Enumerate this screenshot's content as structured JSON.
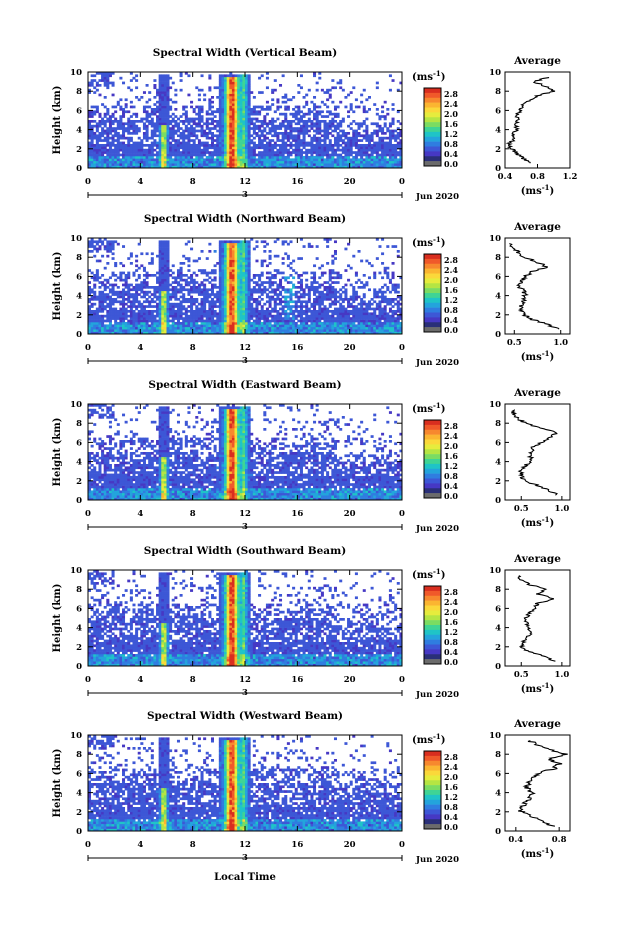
{
  "figure": {
    "xlabel": "Local Time",
    "date_label": "Jun 2020",
    "date_marker": "3",
    "unit_label": "(ms",
    "unit_exp": "-1",
    "ylabel": "Height (km)",
    "avg_title": "Average"
  },
  "colorbar_ticks": [
    "2.8",
    "2.4",
    "2.0",
    "1.6",
    "1.2",
    "0.8",
    "0.4",
    "0.0"
  ],
  "colorbar_colors": [
    "#d92e1f",
    "#f0592a",
    "#f7882e",
    "#fbb531",
    "#fbd83a",
    "#e6ec3d",
    "#b5e543",
    "#7bdc62",
    "#3fd495",
    "#1fc4c7",
    "#23a4dc",
    "#2f7de0",
    "#3d57d6",
    "#4638c4",
    "#2a2f78",
    "#6b6b6b"
  ],
  "chart_data": [
    {
      "type": "heatmap",
      "title": "Spectral Width (Vertical Beam)",
      "xlabel": "Local Time",
      "ylabel": "Height (km)",
      "x_ticks": [
        "0",
        "4",
        "8",
        "12",
        "16",
        "20",
        "0"
      ],
      "y_ticks": [
        "0",
        "2",
        "4",
        "6",
        "8",
        "10"
      ],
      "xlim": [
        0,
        24
      ],
      "ylim": [
        0,
        10
      ],
      "colorbar": {
        "label": "(ms-1)",
        "range": [
          0.0,
          3.0
        ]
      },
      "average_profile": {
        "title": "Average",
        "xlabel": "(ms-1)",
        "x_ticks": [
          "0.4",
          "0.8",
          "1.2"
        ],
        "xlim": [
          0.4,
          1.2
        ],
        "height": [
          0.5,
          1,
          1.5,
          2,
          2.5,
          3,
          3.5,
          4,
          4.5,
          5,
          5.5,
          6,
          6.5,
          7,
          7.5,
          8,
          8.5,
          9,
          9.5
        ],
        "values": [
          0.72,
          0.62,
          0.55,
          0.48,
          0.45,
          0.52,
          0.5,
          0.55,
          0.52,
          0.56,
          0.54,
          0.6,
          0.62,
          0.7,
          0.8,
          1.0,
          0.9,
          0.75,
          0.95
        ]
      }
    },
    {
      "type": "heatmap",
      "title": "Spectral Width (Northward Beam)",
      "xlabel": "Local Time",
      "ylabel": "Height (km)",
      "x_ticks": [
        "0",
        "4",
        "8",
        "12",
        "16",
        "20",
        "0"
      ],
      "y_ticks": [
        "0",
        "2",
        "4",
        "6",
        "8",
        "10"
      ],
      "xlim": [
        0,
        24
      ],
      "ylim": [
        0,
        10
      ],
      "colorbar": {
        "label": "(ms-1)",
        "range": [
          0.0,
          3.0
        ]
      },
      "average_profile": {
        "title": "Average",
        "xlabel": "(ms-1)",
        "x_ticks": [
          "0.5",
          "1.0"
        ],
        "xlim": [
          0.4,
          1.1
        ],
        "height": [
          0.5,
          1,
          1.5,
          2,
          2.5,
          3,
          3.5,
          4,
          4.5,
          5,
          5.5,
          6,
          6.5,
          7,
          7.5,
          8,
          8.5,
          9,
          9.5
        ],
        "values": [
          1.0,
          0.85,
          0.7,
          0.6,
          0.58,
          0.58,
          0.6,
          0.62,
          0.6,
          0.55,
          0.58,
          0.62,
          0.7,
          0.85,
          0.75,
          0.6,
          0.55,
          0.5,
          0.45
        ]
      }
    },
    {
      "type": "heatmap",
      "title": "Spectral Width (Eastward Beam)",
      "xlabel": "Local Time",
      "ylabel": "Height (km)",
      "x_ticks": [
        "0",
        "4",
        "8",
        "12",
        "16",
        "20",
        "0"
      ],
      "y_ticks": [
        "0",
        "2",
        "4",
        "6",
        "8",
        "10"
      ],
      "xlim": [
        0,
        24
      ],
      "ylim": [
        0,
        10
      ],
      "colorbar": {
        "label": "(ms-1)",
        "range": [
          0.0,
          3.0
        ]
      },
      "average_profile": {
        "title": "Average",
        "xlabel": "(ms-1)",
        "x_ticks": [
          "0.5",
          "1.0"
        ],
        "xlim": [
          0.3,
          1.1
        ],
        "height": [
          0.5,
          1,
          1.5,
          2,
          2.5,
          3,
          3.5,
          4,
          4.5,
          5,
          5.5,
          6,
          6.5,
          7,
          7.5,
          8,
          8.5,
          9,
          9.5
        ],
        "values": [
          0.95,
          0.85,
          0.7,
          0.55,
          0.5,
          0.5,
          0.55,
          0.6,
          0.62,
          0.62,
          0.65,
          0.75,
          0.85,
          0.95,
          0.75,
          0.55,
          0.45,
          0.4,
          0.4
        ]
      }
    },
    {
      "type": "heatmap",
      "title": "Spectral Width (Southward Beam)",
      "xlabel": "Local Time",
      "ylabel": "Height (km)",
      "x_ticks": [
        "0",
        "4",
        "8",
        "12",
        "16",
        "20",
        "0"
      ],
      "y_ticks": [
        "0",
        "2",
        "4",
        "6",
        "8",
        "10"
      ],
      "xlim": [
        0,
        24
      ],
      "ylim": [
        0,
        10
      ],
      "colorbar": {
        "label": "(ms-1)",
        "range": [
          0.0,
          3.0
        ]
      },
      "average_profile": {
        "title": "Average",
        "xlabel": "(ms-1)",
        "x_ticks": [
          "0.5",
          "1.0"
        ],
        "xlim": [
          0.3,
          1.1
        ],
        "height": [
          0.5,
          1,
          1.5,
          2,
          2.5,
          3,
          3.5,
          4,
          4.5,
          5,
          5.5,
          6,
          6.5,
          7,
          7.5,
          8,
          8.5,
          9,
          9.5
        ],
        "values": [
          0.9,
          0.8,
          0.6,
          0.5,
          0.52,
          0.58,
          0.62,
          0.6,
          0.58,
          0.55,
          0.6,
          0.65,
          0.7,
          0.9,
          0.7,
          0.8,
          0.6,
          0.5,
          0.45
        ]
      }
    },
    {
      "type": "heatmap",
      "title": "Spectral Width (Westward Beam)",
      "xlabel": "Local Time",
      "ylabel": "Height (km)",
      "x_ticks": [
        "0",
        "4",
        "8",
        "12",
        "16",
        "20",
        "0"
      ],
      "y_ticks": [
        "0",
        "2",
        "4",
        "6",
        "8",
        "10"
      ],
      "xlim": [
        0,
        24
      ],
      "ylim": [
        0,
        10
      ],
      "colorbar": {
        "label": "(ms-1)",
        "range": [
          0.0,
          3.0
        ]
      },
      "average_profile": {
        "title": "Average",
        "xlabel": "(ms-1)",
        "x_ticks": [
          "0.4",
          "0.8"
        ],
        "xlim": [
          0.3,
          0.9
        ],
        "height": [
          0.5,
          1,
          1.5,
          2,
          2.5,
          3,
          3.5,
          4,
          4.5,
          5,
          5.5,
          6,
          6.5,
          7,
          7.5,
          8,
          8.5,
          9,
          9.5
        ],
        "values": [
          0.75,
          0.65,
          0.55,
          0.45,
          0.45,
          0.5,
          0.52,
          0.55,
          0.5,
          0.52,
          0.55,
          0.6,
          0.75,
          0.8,
          0.7,
          0.85,
          0.7,
          0.6,
          0.5
        ]
      }
    }
  ]
}
